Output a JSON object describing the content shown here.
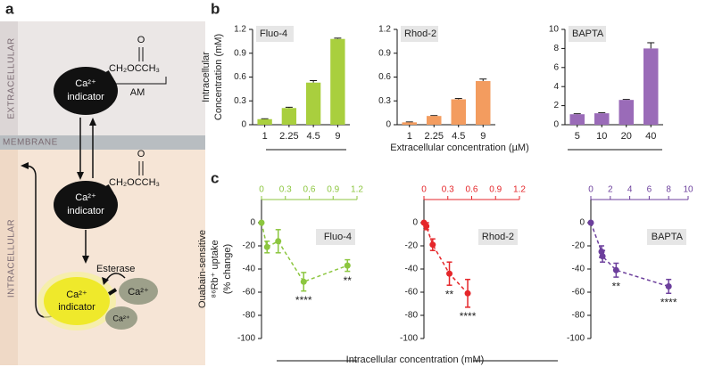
{
  "panel_labels": [
    "a",
    "b",
    "c"
  ],
  "diagram": {
    "regions": [
      "EXTRACELLULAR",
      "MEMBRANE",
      "INTRACELLULAR"
    ],
    "indicators": [
      {
        "ion": "Ca²⁺",
        "label": "indicator"
      },
      {
        "ion": "Ca²⁺",
        "label": "indicator"
      },
      {
        "ion": "Ca²⁺",
        "label": "indicator"
      }
    ],
    "ester": [
      "O",
      "CH₂OCCH₃",
      "O",
      "CH₂OCCH₃"
    ],
    "am": "AM",
    "esterase": "Esterase",
    "free_ions": [
      "Ca²⁺",
      "Ca²⁺"
    ]
  },
  "panel_b_xlabel": "Extracellular concentration (µM)",
  "panel_c_xlabel": "Intracellular concentration (mM)",
  "chart_data": [
    {
      "type": "bar",
      "title": "Fluo-4",
      "ylabel": [
        "Intracellular",
        "Concentration (mM)"
      ],
      "categories": [
        "1",
        "2.25",
        "4.5",
        "9"
      ],
      "values": [
        0.07,
        0.21,
        0.53,
        1.08
      ],
      "errors": [
        0.005,
        0.01,
        0.025,
        0.01
      ],
      "color": "#a9cf3e",
      "ylim": [
        0,
        1.2
      ],
      "yticks": [
        0,
        0.3,
        0.6,
        0.9,
        1.2
      ]
    },
    {
      "type": "bar",
      "title": "Rhod-2",
      "categories": [
        "1",
        "2.25",
        "4.5",
        "9"
      ],
      "values": [
        0.03,
        0.11,
        0.32,
        0.55
      ],
      "errors": [
        0.005,
        0.005,
        0.01,
        0.025
      ],
      "color": "#f39c5f",
      "ylim": [
        0,
        1.2
      ],
      "yticks": [
        0,
        0.3,
        0.6,
        0.9,
        1.2
      ]
    },
    {
      "type": "bar",
      "title": "BAPTA",
      "categories": [
        "5",
        "10",
        "20",
        "40"
      ],
      "values": [
        1.1,
        1.2,
        2.6,
        8.0
      ],
      "errors": [
        0.05,
        0.05,
        0.05,
        0.6
      ],
      "color": "#9a6bb8",
      "ylim": [
        0,
        10
      ],
      "yticks": [
        0,
        2,
        4,
        6,
        8,
        10
      ]
    },
    {
      "type": "line",
      "title": "Fluo-4",
      "ylabel": [
        "Ouabain-sensitive",
        "⁸⁶Rb⁺ uptake",
        "(% change)"
      ],
      "x": [
        0,
        0.07,
        0.21,
        0.53,
        1.08
      ],
      "values": [
        0,
        -21,
        -16,
        -51,
        -37
      ],
      "errors": [
        0,
        5,
        10,
        8,
        5
      ],
      "color": "#8cc63f",
      "xlim": [
        0,
        1.2
      ],
      "xticks": [
        0,
        0.3,
        0.6,
        0.9,
        1.2
      ],
      "ylim": [
        -100,
        20
      ],
      "yticks": [
        -100,
        -80,
        -60,
        -40,
        -20,
        0
      ],
      "annotations": [
        {
          "x": 0.53,
          "text": "****"
        },
        {
          "x": 1.08,
          "text": "**"
        }
      ]
    },
    {
      "type": "line",
      "title": "Rhod-2",
      "x": [
        0,
        0.03,
        0.11,
        0.32,
        0.55
      ],
      "values": [
        0,
        -3,
        -19,
        -44,
        -61
      ],
      "errors": [
        0,
        3,
        5,
        10,
        12
      ],
      "color": "#e5262a",
      "xlim": [
        0,
        1.2
      ],
      "xticks": [
        0,
        0.3,
        0.6,
        0.9,
        1.2
      ],
      "ylim": [
        -100,
        20
      ],
      "yticks": [
        -100,
        -80,
        -60,
        -40,
        -20,
        0
      ],
      "annotations": [
        {
          "x": 0.32,
          "text": "**"
        },
        {
          "x": 0.55,
          "text": "****"
        }
      ]
    },
    {
      "type": "line",
      "title": "BAPTA",
      "x": [
        0,
        1.1,
        1.2,
        2.6,
        8.0
      ],
      "values": [
        0,
        -25,
        -29,
        -41,
        -55
      ],
      "errors": [
        0,
        5,
        5,
        6,
        6
      ],
      "color": "#6c3f9c",
      "xlim": [
        0,
        10
      ],
      "xticks": [
        0,
        2,
        4,
        6,
        8,
        10
      ],
      "ylim": [
        -100,
        20
      ],
      "yticks": [
        -100,
        -80,
        -60,
        -40,
        -20,
        0
      ],
      "annotations": [
        {
          "x": 2.6,
          "text": "**"
        },
        {
          "x": 8.0,
          "text": "****"
        }
      ]
    }
  ]
}
